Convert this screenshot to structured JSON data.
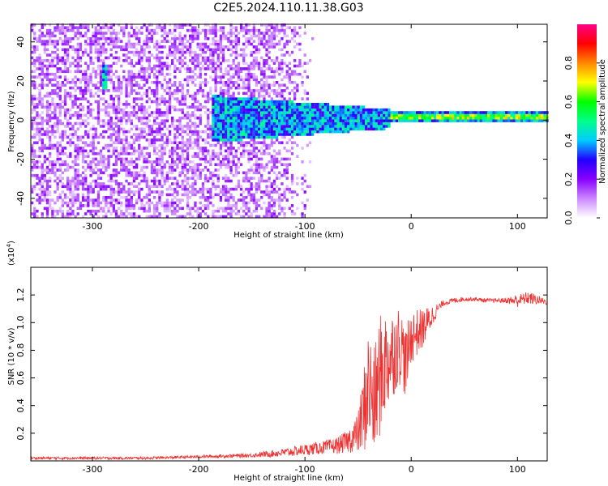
{
  "title": "C2E5.2024.110.11.38.G03",
  "chart_data": [
    {
      "type": "heatmap",
      "xlabel": "Height of straight line (km)",
      "ylabel": "Frequency (Hz)",
      "xlim": [
        -358,
        128
      ],
      "ylim": [
        -50,
        49
      ],
      "x_ticks": [
        -300,
        -200,
        -100,
        0,
        100
      ],
      "y_ticks": [
        -40,
        -20,
        0,
        20,
        40
      ],
      "x_tick_labels": [
        "-300",
        "-200",
        "-100",
        "0",
        "100"
      ],
      "y_tick_labels": [
        "-40",
        "-20",
        "0",
        "20",
        "40"
      ],
      "colorbar": {
        "label": "Normalized spectral amplitude",
        "range": [
          0,
          1
        ],
        "ticks": [
          0.0,
          0.2,
          0.4,
          0.6,
          0.8
        ],
        "tick_labels": [
          "0.0",
          "0.2",
          "0.4",
          "0.6",
          "0.8"
        ],
        "colormap": [
          "#ffffff",
          "#cc88ff",
          "#8800ff",
          "#2200ff",
          "#00ccff",
          "#00ff88",
          "#00ff00",
          "#ffff00",
          "#ff8800",
          "#ff0000",
          "#ff0088"
        ]
      },
      "features": [
        {
          "name": "background noise",
          "x_range": [
            -358,
            -130
          ],
          "f_range": [
            -50,
            49
          ],
          "amplitude": 0.15
        },
        {
          "name": "narrowing signal band",
          "x_range": [
            -190,
            -20
          ],
          "f_center": 0,
          "f_halfwidth_start": 12,
          "f_halfwidth_end": 5,
          "amplitude": 0.3
        },
        {
          "name": "strong carrier line",
          "x_range": [
            -20,
            128
          ],
          "f_center": 1,
          "f_halfwidth": 2,
          "amplitude": 0.8
        },
        {
          "name": "streak",
          "x": -290,
          "f_range": [
            15,
            27
          ],
          "amplitude": 0.3
        }
      ]
    },
    {
      "type": "line",
      "xlabel": "Height of straight line (km)",
      "ylabel": "SNR (10 * v/v)",
      "y_multiplier": "(x10",
      "y_multiplier_exp": "4",
      "y_multiplier_close": ")",
      "xlim": [
        -358,
        128
      ],
      "ylim": [
        0,
        1.4
      ],
      "x_ticks": [
        -300,
        -200,
        -100,
        0,
        100
      ],
      "y_ticks": [
        0.2,
        0.4,
        0.6,
        0.8,
        1.0,
        1.2
      ],
      "x_tick_labels": [
        "-300",
        "-200",
        "-100",
        "0",
        "100"
      ],
      "y_tick_labels": [
        "0.2",
        "0.4",
        "0.6",
        "0.8",
        "1.0",
        "1.2"
      ],
      "color": "#ee3333",
      "x": [
        -358,
        -300,
        -250,
        -200,
        -150,
        -120,
        -100,
        -80,
        -70,
        -60,
        -50,
        -45,
        -40,
        -35,
        -30,
        -25,
        -20,
        -15,
        -10,
        -5,
        0,
        10,
        20,
        25,
        30,
        40,
        50,
        60,
        70,
        80,
        90,
        100,
        105,
        110,
        115,
        128
      ],
      "values": [
        0.02,
        0.02,
        0.02,
        0.03,
        0.04,
        0.06,
        0.08,
        0.1,
        0.11,
        0.14,
        0.2,
        0.35,
        0.55,
        0.4,
        0.6,
        0.7,
        0.75,
        0.8,
        0.85,
        0.7,
        0.9,
        0.95,
        1.05,
        1.1,
        1.14,
        1.16,
        1.17,
        1.17,
        1.16,
        1.16,
        1.16,
        1.16,
        1.17,
        1.18,
        1.17,
        1.15
      ],
      "noise": [
        0.01,
        0.01,
        0.01,
        0.01,
        0.015,
        0.03,
        0.04,
        0.05,
        0.06,
        0.08,
        0.15,
        0.3,
        0.45,
        0.4,
        0.45,
        0.4,
        0.35,
        0.3,
        0.3,
        0.25,
        0.2,
        0.15,
        0.08,
        0.04,
        0.02,
        0.02,
        0.015,
        0.015,
        0.015,
        0.015,
        0.02,
        0.05,
        0.04,
        0.05,
        0.04,
        0.02
      ]
    }
  ]
}
